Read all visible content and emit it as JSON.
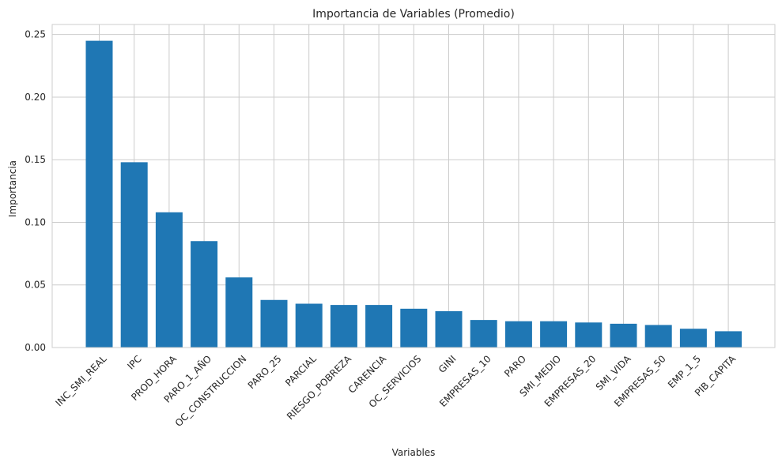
{
  "chart_data": {
    "type": "bar",
    "title": "Importancia de Variables (Promedio)",
    "xlabel": "Variables",
    "ylabel": "Importancia",
    "categories": [
      "INC_SMI_REAL",
      "IPC",
      "PROD_HORA",
      "PARO_1_AÑO",
      "OC_CONSTRUCCION",
      "PARO_25",
      "PARCIAL",
      "RIESGO_POBREZA",
      "CARENCIA",
      "OC_SERVICIOS",
      "GINI",
      "EMPRESAS_10",
      "PARO",
      "SMI_MEDIO",
      "EMPRESAS_20",
      "SMI_VIDA",
      "EMPRESAS_50",
      "EMP_1_5",
      "PIB_CAPITA"
    ],
    "values": [
      0.245,
      0.148,
      0.108,
      0.085,
      0.056,
      0.038,
      0.035,
      0.034,
      0.034,
      0.031,
      0.029,
      0.022,
      0.021,
      0.021,
      0.02,
      0.019,
      0.018,
      0.015,
      0.013
    ],
    "ylim": [
      0,
      0.258
    ],
    "yticks": [
      "0.00",
      "0.05",
      "0.10",
      "0.15",
      "0.20",
      "0.25"
    ],
    "grid": true,
    "bar_color": "#1f77b4",
    "grid_color": "#cccccc"
  }
}
